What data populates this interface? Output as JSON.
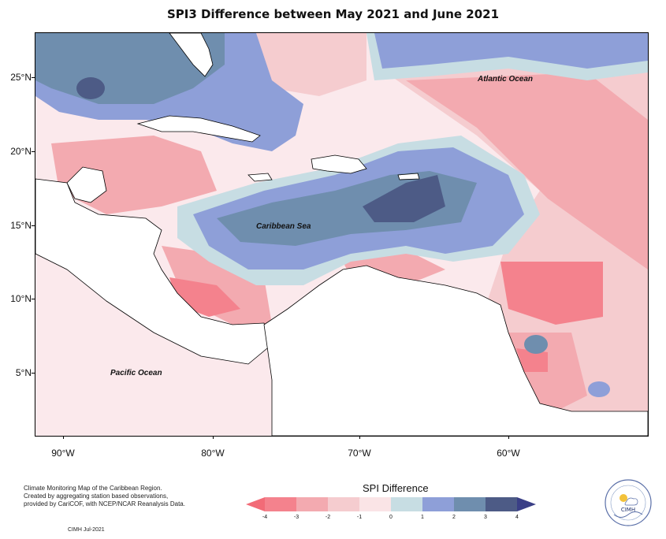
{
  "title": "SPI3 Difference between May 2021 and June 2021",
  "map": {
    "lat_labels": [
      "25°N",
      "20°N",
      "15°N",
      "10°N",
      "5°N"
    ],
    "lon_labels": [
      "90°W",
      "80°W",
      "70°W",
      "60°W"
    ],
    "ocean_labels": {
      "atlantic": "Atlantic Ocean",
      "caribbean": "Caribbean Sea",
      "pacific": "Pacific Ocean"
    }
  },
  "legend": {
    "title": "SPI Difference",
    "ticks": [
      "-4",
      "-3",
      "-2",
      "-1",
      "0",
      "1",
      "2",
      "3",
      "4"
    ],
    "colors": [
      "#f4828d",
      "#f3aab0",
      "#f5cccf",
      "#fae4e6",
      "#c7dde3",
      "#8e9fd8",
      "#6f8eae",
      "#4d5b86"
    ],
    "end_colors": {
      "low": "#f26b77",
      "high": "#3a3f86"
    }
  },
  "credit": {
    "line1": "Climate Monitoring Map of the Caribbean Region.",
    "line2": "Created by aggregating station based observations,",
    "line3": "provided by CariCOF, with NCEP/NCAR Reanalysis Data.",
    "stamp": "CIMH Jul-2021"
  },
  "logo": {
    "name": "CIMH"
  },
  "colors": {
    "land": "#ffffff",
    "coast": "#000000"
  }
}
